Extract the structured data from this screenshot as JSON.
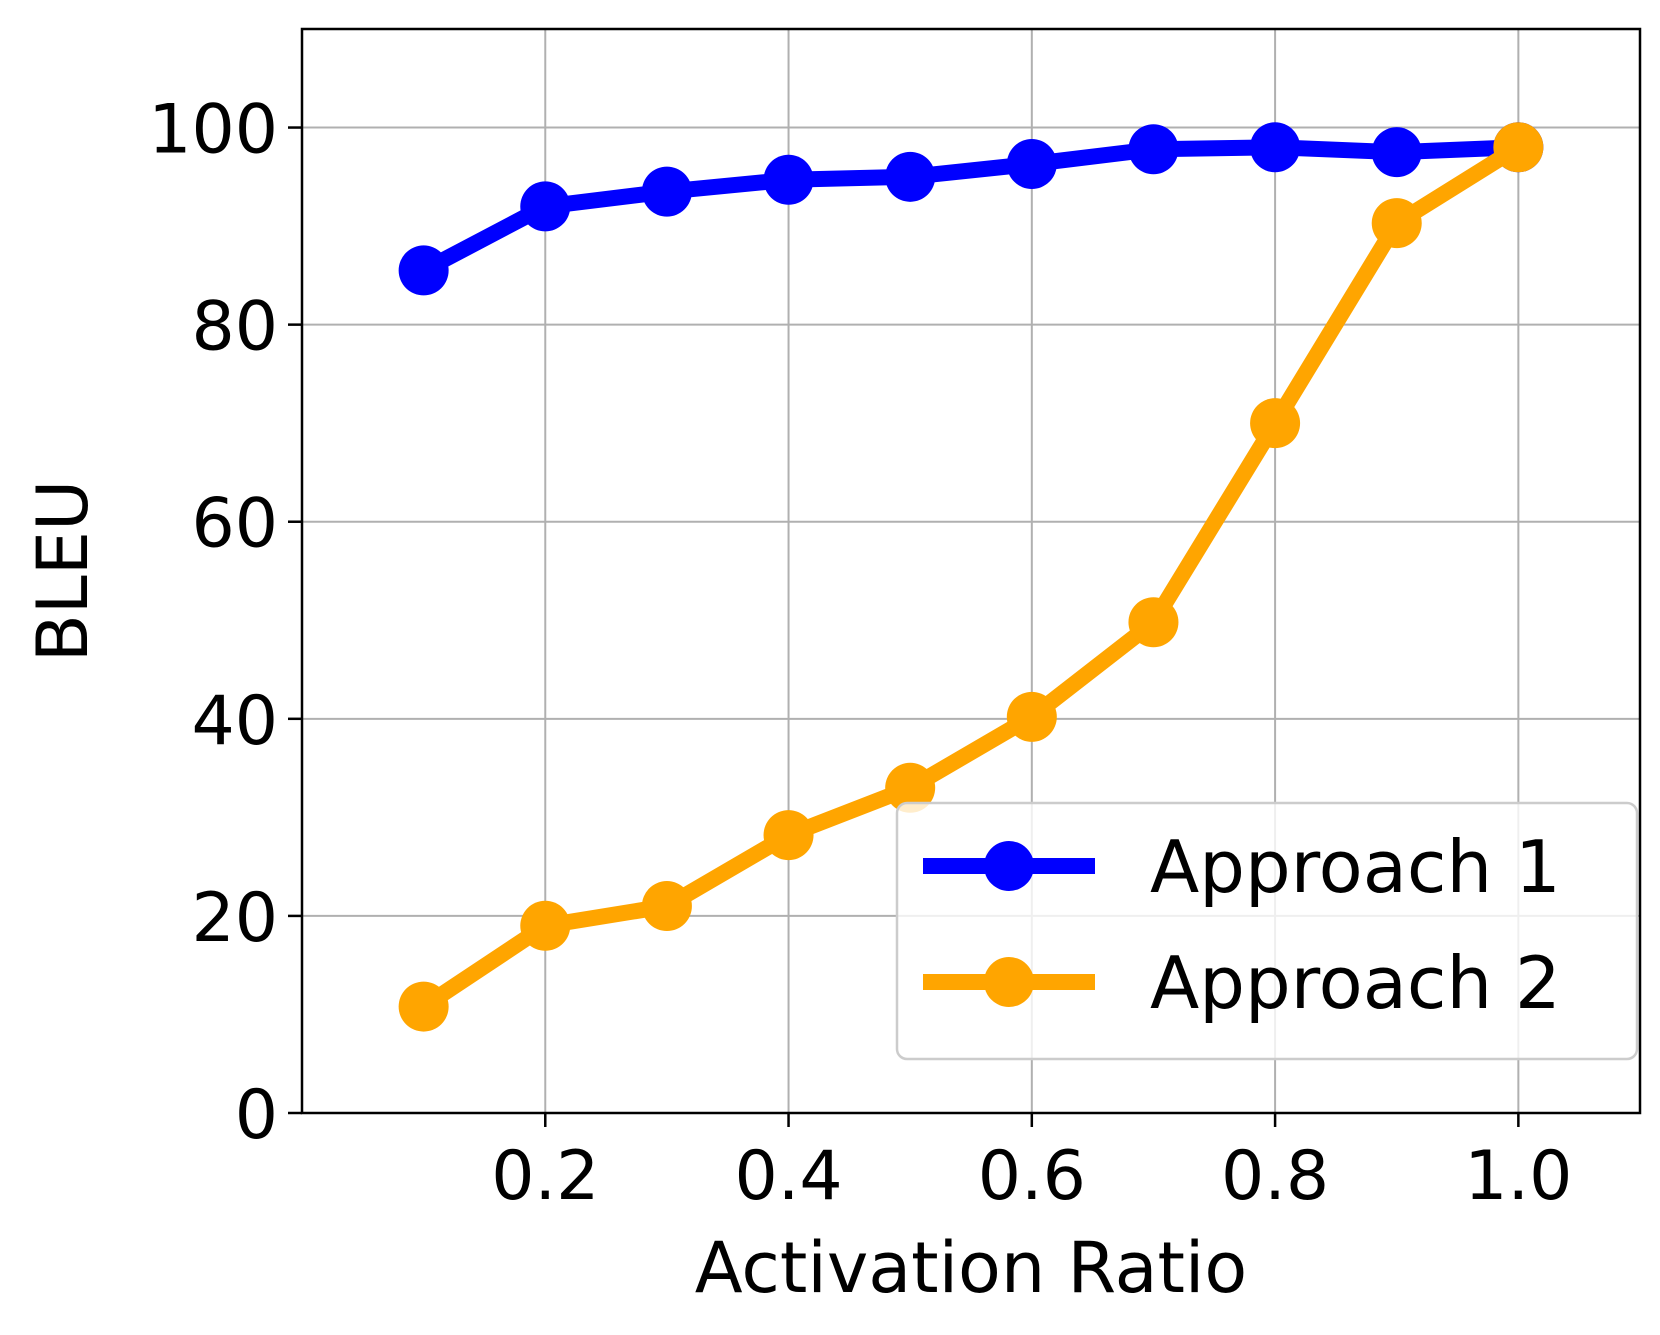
{
  "chart_data": {
    "type": "line",
    "xlabel": "Activation Ratio",
    "ylabel": "BLEU",
    "xlim": [
      0.0,
      1.1
    ],
    "ylim": [
      0,
      110
    ],
    "x_ticks": [
      "0.2",
      "0.4",
      "0.6",
      "0.8",
      "1.0"
    ],
    "y_ticks": [
      "0",
      "20",
      "40",
      "60",
      "80",
      "100"
    ],
    "grid": true,
    "legend_position": "lower-right",
    "series": [
      {
        "name": "Approach 1",
        "color": "#0000ff",
        "marker": "circle",
        "x": [
          0.1,
          0.2,
          0.3,
          0.4,
          0.5,
          0.6,
          0.7,
          0.8,
          0.9,
          1.0
        ],
        "y": [
          85.5,
          92.0,
          93.5,
          94.7,
          95.0,
          96.3,
          97.8,
          98.0,
          97.5,
          98.0
        ]
      },
      {
        "name": "Approach 2",
        "color": "#ffa500",
        "marker": "circle",
        "x": [
          0.1,
          0.2,
          0.3,
          0.4,
          0.5,
          0.6,
          0.7,
          0.8,
          0.9,
          1.0
        ],
        "y": [
          10.8,
          19.0,
          21.0,
          28.2,
          33.0,
          40.2,
          49.8,
          70.0,
          90.3,
          98.0
        ]
      }
    ]
  }
}
